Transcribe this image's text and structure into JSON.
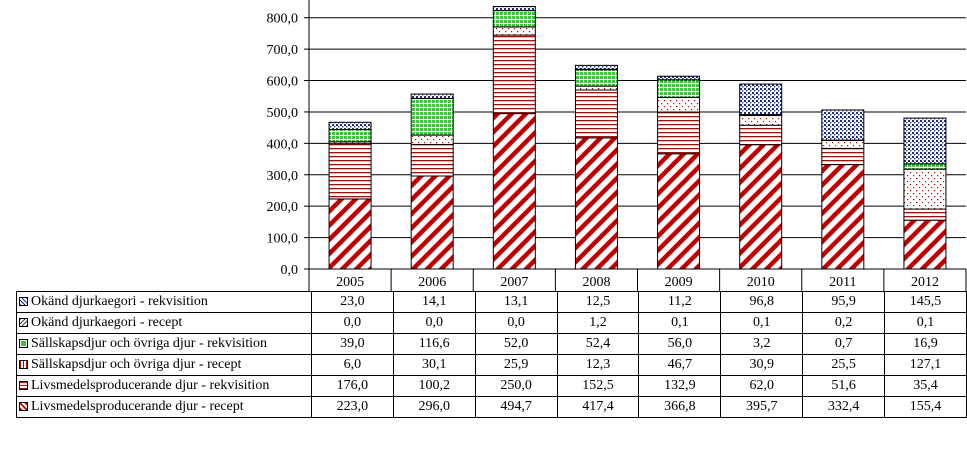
{
  "chart_data": {
    "type": "bar",
    "stacked": true,
    "categories": [
      "2005",
      "2006",
      "2007",
      "2008",
      "2009",
      "2010",
      "2011",
      "2012"
    ],
    "ylim": [
      0,
      850
    ],
    "yticks": [
      "0,0",
      "100,0",
      "200,0",
      "300,0",
      "400,0",
      "500,0",
      "600,0",
      "700,0",
      "800,0"
    ],
    "ytick_values": [
      0,
      100,
      200,
      300,
      400,
      500,
      600,
      700,
      800
    ],
    "series": [
      {
        "key": "liv-recept",
        "name": "Livsmedelsproducerande djur - recept",
        "color": "#c00000",
        "values": [
          223.0,
          296.0,
          494.7,
          417.4,
          366.8,
          395.7,
          332.4,
          155.4
        ],
        "display": [
          "223,0",
          "296,0",
          "494,7",
          "417,4",
          "366,8",
          "395,7",
          "332,4",
          "155,4"
        ]
      },
      {
        "key": "liv-rekv",
        "name": "Livsmedelsproducerande djur - rekvisition",
        "color": "#c00000",
        "values": [
          176.0,
          100.2,
          250.0,
          152.5,
          132.9,
          62.0,
          51.6,
          35.4
        ],
        "display": [
          "176,0",
          "100,2",
          "250,0",
          "152,5",
          "132,9",
          "62,0",
          "51,6",
          "35,4"
        ]
      },
      {
        "key": "sall-recept",
        "name": "Sällskapsdjur och övriga djur - recept",
        "color": "#c00000",
        "values": [
          6.0,
          30.1,
          25.9,
          12.3,
          46.7,
          30.9,
          25.5,
          127.1
        ],
        "display": [
          "6,0",
          "30,1",
          "25,9",
          "12,3",
          "46,7",
          "30,9",
          "25,5",
          "127,1"
        ]
      },
      {
        "key": "sall-rekv",
        "name": "Sällskapsdjur och övriga djur - rekvisition",
        "color": "#33cc33",
        "values": [
          39.0,
          116.6,
          52.0,
          52.4,
          56.0,
          3.2,
          0.7,
          16.9
        ],
        "display": [
          "39,0",
          "116,6",
          "52,0",
          "52,4",
          "56,0",
          "3,2",
          "0,7",
          "16,9"
        ]
      },
      {
        "key": "okand-recept",
        "name": "Okänd djurkaegori - recept",
        "color": "#444444",
        "values": [
          0.0,
          0.0,
          0.0,
          1.2,
          0.1,
          0.1,
          0.2,
          0.1
        ],
        "display": [
          "0,0",
          "0,0",
          "0,0",
          "1,2",
          "0,1",
          "0,1",
          "0,2",
          "0,1"
        ]
      },
      {
        "key": "okand-rekv",
        "name": "Okänd djurkaegori - rekvisition",
        "color": "#1f2e8c",
        "values": [
          23.0,
          14.1,
          13.1,
          12.5,
          11.2,
          96.8,
          95.9,
          145.5
        ],
        "display": [
          "23,0",
          "14,1",
          "13,1",
          "12,5",
          "11,2",
          "96,8",
          "95,9",
          "145,5"
        ]
      }
    ],
    "table_row_order": [
      "okand-rekv",
      "okand-recept",
      "sall-rekv",
      "sall-recept",
      "liv-rekv",
      "liv-recept"
    ],
    "grid": true,
    "legend": "table-below"
  }
}
